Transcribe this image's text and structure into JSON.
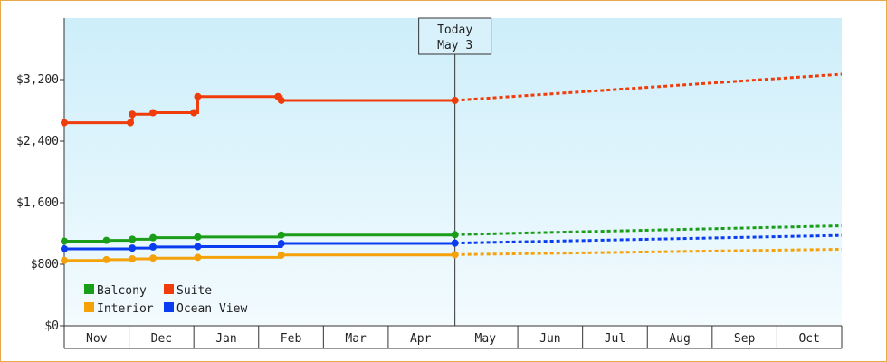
{
  "chart_data": {
    "type": "line",
    "title": "",
    "xlabel": "",
    "ylabel": "",
    "ylim": [
      0,
      4000
    ],
    "yticks": [
      {
        "value": 0,
        "label": "$0"
      },
      {
        "value": 800,
        "label": "$800"
      },
      {
        "value": 1600,
        "label": "$1,600"
      },
      {
        "value": 2400,
        "label": "$2,400"
      },
      {
        "value": 3200,
        "label": "$3,200"
      }
    ],
    "x_axis": {
      "unit": "month",
      "start": "2023-11",
      "months": [
        "Nov",
        "Dec",
        "Jan",
        "Feb",
        "Mar",
        "Apr",
        "May",
        "Jun",
        "Jul",
        "Aug",
        "Sep",
        "Oct"
      ]
    },
    "today": {
      "line1": "Today",
      "line2": "May 3",
      "x": 6.03
    },
    "grid": false,
    "legend_position": "bottom-left",
    "colors": {
      "Balcony": "#1a9e1a",
      "Suite": "#f03c0a",
      "Interior": "#f5a20a",
      "Ocean View": "#0a3cf0",
      "bg_top": "#cdeefa",
      "bg_bottom": "#f3fbfe",
      "border": "#e8a94a"
    },
    "series": [
      {
        "name": "Balcony",
        "points": [
          [
            0.0,
            1100
          ],
          [
            0.65,
            1110
          ],
          [
            1.05,
            1125
          ],
          [
            1.37,
            1145
          ],
          [
            2.06,
            1155
          ],
          [
            3.35,
            1180
          ],
          [
            6.03,
            1185
          ]
        ],
        "forecast": [
          [
            6.03,
            1185
          ],
          [
            12.0,
            1300
          ]
        ]
      },
      {
        "name": "Suite",
        "points": [
          [
            0.0,
            2640
          ],
          [
            1.02,
            2640
          ],
          [
            1.05,
            2750
          ],
          [
            1.37,
            2770
          ],
          [
            2.0,
            2770
          ],
          [
            2.06,
            2980
          ],
          [
            3.3,
            2980
          ],
          [
            3.35,
            2930
          ],
          [
            6.03,
            2930
          ]
        ],
        "forecast": [
          [
            6.03,
            2930
          ],
          [
            12.0,
            3270
          ]
        ]
      },
      {
        "name": "Interior",
        "points": [
          [
            0.0,
            850
          ],
          [
            0.65,
            860
          ],
          [
            1.05,
            870
          ],
          [
            1.37,
            880
          ],
          [
            2.06,
            890
          ],
          [
            3.35,
            920
          ],
          [
            6.03,
            925
          ]
        ],
        "forecast": [
          [
            6.03,
            925
          ],
          [
            12.0,
            995
          ]
        ]
      },
      {
        "name": "Ocean View",
        "points": [
          [
            0.0,
            1000
          ],
          [
            1.05,
            1010
          ],
          [
            1.37,
            1025
          ],
          [
            2.06,
            1030
          ],
          [
            3.35,
            1070
          ],
          [
            6.03,
            1075
          ]
        ],
        "forecast": [
          [
            6.03,
            1075
          ],
          [
            12.0,
            1175
          ]
        ]
      }
    ]
  }
}
